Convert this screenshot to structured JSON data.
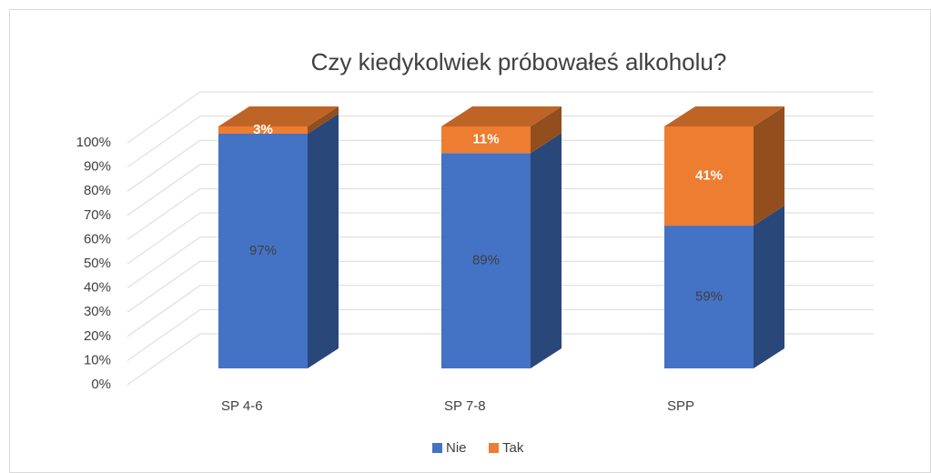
{
  "chart_data": {
    "type": "bar3d_stacked",
    "title": "Czy kiedykolwiek próbowałeś alkoholu?",
    "categories": [
      "SP 4-6",
      "SP 7-8",
      "SPP"
    ],
    "series": [
      {
        "name": "Nie",
        "color": "#4472c4",
        "values": [
          97,
          89,
          59
        ],
        "value_labels": [
          "97%",
          "89%",
          "59%"
        ]
      },
      {
        "name": "Tak",
        "color": "#ed7d31",
        "values": [
          3,
          11,
          41
        ],
        "value_labels": [
          "3%",
          "11%",
          "41%"
        ]
      }
    ],
    "ylim": [
      0,
      100
    ],
    "yticks": [
      {
        "value": 0,
        "label": "0%"
      },
      {
        "value": 10,
        "label": "10%"
      },
      {
        "value": 20,
        "label": "20%"
      },
      {
        "value": 30,
        "label": "30%"
      },
      {
        "value": 40,
        "label": "40%"
      },
      {
        "value": 50,
        "label": "50%"
      },
      {
        "value": 60,
        "label": "60%"
      },
      {
        "value": 70,
        "label": "70%"
      },
      {
        "value": 80,
        "label": "80%"
      },
      {
        "value": 90,
        "label": "90%"
      },
      {
        "value": 100,
        "label": "100%"
      }
    ],
    "grid": true,
    "legend": "bottom"
  }
}
